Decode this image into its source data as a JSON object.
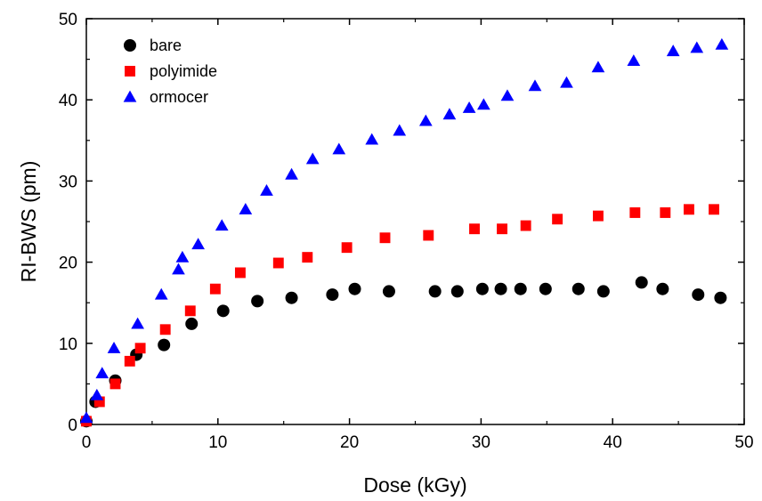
{
  "chart_data": {
    "type": "scatter",
    "title": "",
    "xlabel": "Dose (kGy)",
    "ylabel": "RI-BWS (pm)",
    "xlim": [
      0,
      50
    ],
    "ylim": [
      0,
      50
    ],
    "xticks": [
      0,
      10,
      20,
      30,
      40,
      50
    ],
    "yticks": [
      0,
      10,
      20,
      30,
      40,
      50
    ],
    "grid": false,
    "legend_position": "top-left",
    "series": [
      {
        "name": "bare",
        "marker": "circle",
        "color": "#000000",
        "points": [
          [
            0,
            0.4
          ],
          [
            0.7,
            2.8
          ],
          [
            2.2,
            5.4
          ],
          [
            3.8,
            8.6
          ],
          [
            5.9,
            9.8
          ],
          [
            8.0,
            12.4
          ],
          [
            10.4,
            14.0
          ],
          [
            13.0,
            15.2
          ],
          [
            15.6,
            15.6
          ],
          [
            18.7,
            16.0
          ],
          [
            20.4,
            16.7
          ],
          [
            23.0,
            16.4
          ],
          [
            26.5,
            16.4
          ],
          [
            28.2,
            16.4
          ],
          [
            30.1,
            16.7
          ],
          [
            31.5,
            16.7
          ],
          [
            33.0,
            16.7
          ],
          [
            34.9,
            16.7
          ],
          [
            37.4,
            16.7
          ],
          [
            39.3,
            16.4
          ],
          [
            42.2,
            17.5
          ],
          [
            43.8,
            16.7
          ],
          [
            46.5,
            16.0
          ],
          [
            48.2,
            15.6
          ]
        ]
      },
      {
        "name": "polyimide",
        "marker": "square",
        "color": "#ff0000",
        "points": [
          [
            0,
            0.4
          ],
          [
            1.0,
            2.8
          ],
          [
            2.2,
            5.0
          ],
          [
            3.3,
            7.8
          ],
          [
            4.1,
            9.4
          ],
          [
            6.0,
            11.7
          ],
          [
            7.9,
            14.0
          ],
          [
            9.8,
            16.7
          ],
          [
            11.7,
            18.7
          ],
          [
            14.6,
            19.9
          ],
          [
            16.8,
            20.6
          ],
          [
            19.8,
            21.8
          ],
          [
            22.7,
            23.0
          ],
          [
            26.0,
            23.3
          ],
          [
            29.5,
            24.1
          ],
          [
            31.6,
            24.1
          ],
          [
            33.4,
            24.5
          ],
          [
            35.8,
            25.3
          ],
          [
            38.9,
            25.7
          ],
          [
            41.7,
            26.1
          ],
          [
            44.0,
            26.1
          ],
          [
            45.8,
            26.5
          ],
          [
            47.7,
            26.5
          ]
        ]
      },
      {
        "name": "ormocer",
        "marker": "triangle",
        "color": "#0000ff",
        "points": [
          [
            0,
            0.8
          ],
          [
            0.8,
            3.6
          ],
          [
            1.2,
            6.3
          ],
          [
            2.1,
            9.4
          ],
          [
            3.9,
            12.4
          ],
          [
            5.7,
            16.0
          ],
          [
            7.0,
            19.1
          ],
          [
            7.3,
            20.6
          ],
          [
            8.5,
            22.2
          ],
          [
            10.3,
            24.5
          ],
          [
            12.1,
            26.5
          ],
          [
            13.7,
            28.8
          ],
          [
            15.6,
            30.8
          ],
          [
            17.2,
            32.7
          ],
          [
            19.2,
            33.9
          ],
          [
            21.7,
            35.1
          ],
          [
            23.8,
            36.2
          ],
          [
            25.8,
            37.4
          ],
          [
            27.6,
            38.2
          ],
          [
            29.1,
            39.0
          ],
          [
            30.2,
            39.4
          ],
          [
            32.0,
            40.5
          ],
          [
            34.1,
            41.7
          ],
          [
            36.5,
            42.1
          ],
          [
            38.9,
            44.0
          ],
          [
            41.6,
            44.8
          ],
          [
            44.6,
            46.0
          ],
          [
            46.4,
            46.4
          ],
          [
            48.3,
            46.8
          ]
        ]
      }
    ]
  }
}
